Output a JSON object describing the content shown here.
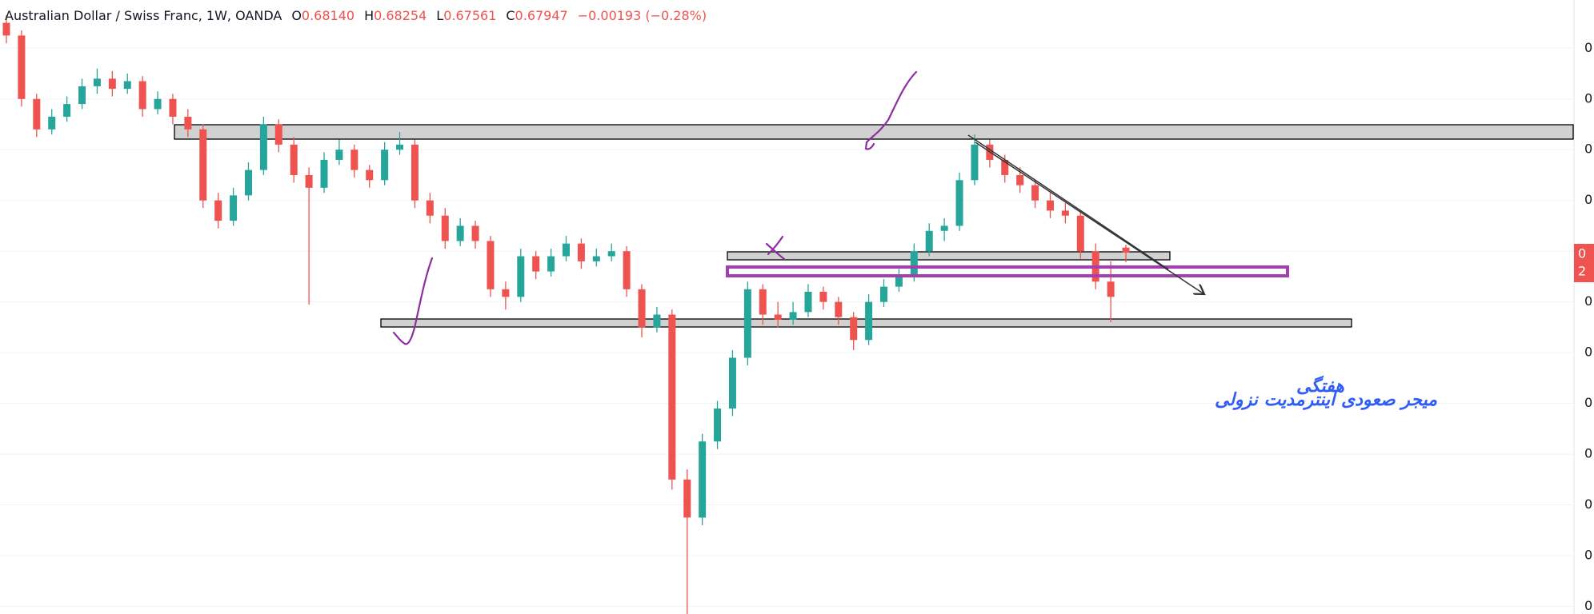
{
  "chart_data": {
    "type": "candlestick",
    "header": {
      "symbol": "Australian Dollar / Swiss Franc, 1W, OANDA",
      "open_label": "O",
      "open": "0.68140",
      "high_label": "H",
      "high": "0.68254",
      "low_label": "L",
      "low": "0.67561",
      "close_label": "C",
      "close": "0.67947",
      "change": "−0.00193 (−0.28%)"
    },
    "up_color": "#26a69a",
    "down_color": "#ef5350",
    "candles": [
      [
        0.77,
        0.773,
        0.762,
        0.765
      ],
      [
        0.765,
        0.767,
        0.737,
        0.74
      ],
      [
        0.74,
        0.742,
        0.725,
        0.728
      ],
      [
        0.728,
        0.736,
        0.726,
        0.733
      ],
      [
        0.733,
        0.741,
        0.731,
        0.738
      ],
      [
        0.738,
        0.748,
        0.736,
        0.745
      ],
      [
        0.745,
        0.752,
        0.742,
        0.748
      ],
      [
        0.748,
        0.751,
        0.741,
        0.744
      ],
      [
        0.744,
        0.75,
        0.742,
        0.747
      ],
      [
        0.747,
        0.749,
        0.733,
        0.736
      ],
      [
        0.736,
        0.743,
        0.734,
        0.74
      ],
      [
        0.74,
        0.742,
        0.73,
        0.733
      ],
      [
        0.733,
        0.736,
        0.725,
        0.728
      ],
      [
        0.728,
        0.73,
        0.697,
        0.7
      ],
      [
        0.7,
        0.703,
        0.689,
        0.692
      ],
      [
        0.692,
        0.705,
        0.69,
        0.702
      ],
      [
        0.702,
        0.715,
        0.7,
        0.712
      ],
      [
        0.712,
        0.733,
        0.71,
        0.73
      ],
      [
        0.73,
        0.732,
        0.719,
        0.722
      ],
      [
        0.722,
        0.725,
        0.707,
        0.71
      ],
      [
        0.71,
        0.713,
        0.659,
        0.705
      ],
      [
        0.705,
        0.719,
        0.703,
        0.716
      ],
      [
        0.716,
        0.724,
        0.714,
        0.72
      ],
      [
        0.72,
        0.722,
        0.709,
        0.712
      ],
      [
        0.712,
        0.714,
        0.705,
        0.708
      ],
      [
        0.708,
        0.723,
        0.706,
        0.72
      ],
      [
        0.72,
        0.727,
        0.718,
        0.722
      ],
      [
        0.722,
        0.724,
        0.697,
        0.7
      ],
      [
        0.7,
        0.703,
        0.691,
        0.694
      ],
      [
        0.694,
        0.697,
        0.681,
        0.684
      ],
      [
        0.684,
        0.693,
        0.682,
        0.69
      ],
      [
        0.69,
        0.692,
        0.681,
        0.684
      ],
      [
        0.684,
        0.686,
        0.662,
        0.665
      ],
      [
        0.665,
        0.668,
        0.657,
        0.662
      ],
      [
        0.662,
        0.681,
        0.66,
        0.678
      ],
      [
        0.678,
        0.68,
        0.669,
        0.672
      ],
      [
        0.672,
        0.681,
        0.67,
        0.678
      ],
      [
        0.678,
        0.686,
        0.676,
        0.683
      ],
      [
        0.683,
        0.685,
        0.673,
        0.676
      ],
      [
        0.676,
        0.681,
        0.674,
        0.678
      ],
      [
        0.678,
        0.683,
        0.676,
        0.68
      ],
      [
        0.68,
        0.682,
        0.662,
        0.665
      ],
      [
        0.665,
        0.667,
        0.646,
        0.65
      ],
      [
        0.65,
        0.658,
        0.648,
        0.655
      ],
      [
        0.655,
        0.657,
        0.586,
        0.59
      ],
      [
        0.59,
        0.594,
        0.537,
        0.575
      ],
      [
        0.575,
        0.608,
        0.572,
        0.605
      ],
      [
        0.605,
        0.621,
        0.602,
        0.618
      ],
      [
        0.618,
        0.641,
        0.615,
        0.638
      ],
      [
        0.638,
        0.668,
        0.635,
        0.665
      ],
      [
        0.665,
        0.667,
        0.651,
        0.655
      ],
      [
        0.655,
        0.66,
        0.65,
        0.653
      ],
      [
        0.653,
        0.66,
        0.651,
        0.656
      ],
      [
        0.656,
        0.667,
        0.654,
        0.664
      ],
      [
        0.664,
        0.666,
        0.657,
        0.66
      ],
      [
        0.66,
        0.662,
        0.651,
        0.654
      ],
      [
        0.654,
        0.656,
        0.641,
        0.645
      ],
      [
        0.645,
        0.663,
        0.643,
        0.66
      ],
      [
        0.66,
        0.669,
        0.658,
        0.666
      ],
      [
        0.666,
        0.673,
        0.664,
        0.67
      ],
      [
        0.67,
        0.683,
        0.668,
        0.68
      ],
      [
        0.68,
        0.691,
        0.678,
        0.688
      ],
      [
        0.688,
        0.693,
        0.684,
        0.69
      ],
      [
        0.69,
        0.711,
        0.688,
        0.708
      ],
      [
        0.708,
        0.726,
        0.706,
        0.722
      ],
      [
        0.722,
        0.724,
        0.713,
        0.716
      ],
      [
        0.716,
        0.718,
        0.707,
        0.71
      ],
      [
        0.71,
        0.713,
        0.703,
        0.706
      ],
      [
        0.706,
        0.708,
        0.697,
        0.7
      ],
      [
        0.7,
        0.703,
        0.693,
        0.696
      ],
      [
        0.696,
        0.699,
        0.691,
        0.694
      ],
      [
        0.694,
        0.696,
        0.677,
        0.68
      ],
      [
        0.68,
        0.683,
        0.665,
        0.668
      ],
      [
        0.668,
        0.676,
        0.652,
        0.662
      ],
      [
        0.6814,
        0.68254,
        0.67561,
        0.67947
      ]
    ],
    "ylim": [
      0.537,
      0.779
    ],
    "yticks": [
      {
        "value": 0.54,
        "label": "0"
      },
      {
        "value": 0.56,
        "label": "0"
      },
      {
        "value": 0.58,
        "label": "0"
      },
      {
        "value": 0.6,
        "label": "0"
      },
      {
        "value": 0.62,
        "label": "0"
      },
      {
        "value": 0.64,
        "label": "0"
      },
      {
        "value": 0.66,
        "label": "0"
      },
      {
        "value": 0.68,
        "label": "0"
      },
      {
        "value": 0.7,
        "label": "0"
      },
      {
        "value": 0.72,
        "label": "0"
      },
      {
        "value": 0.74,
        "label": "0"
      },
      {
        "value": 0.76,
        "label": "0"
      }
    ],
    "grid": true,
    "price_label": [
      "0",
      "2"
    ],
    "annotations": [
      "هفتگی",
      "میجر صعودی اینترمدیت نزولی"
    ]
  }
}
